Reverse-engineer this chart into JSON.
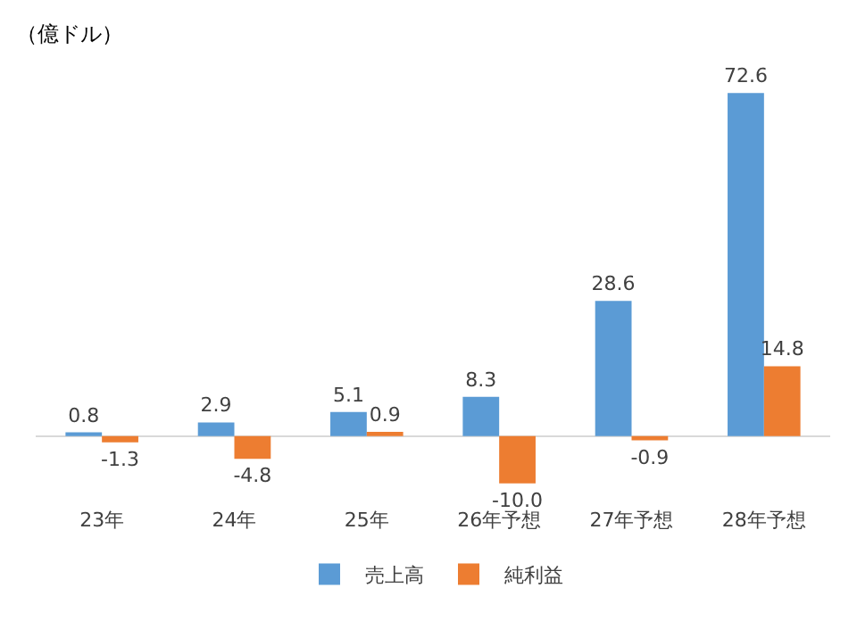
{
  "chart_data": {
    "type": "bar",
    "ylabel": "（億ドル）",
    "categories": [
      "23年",
      "24年",
      "25年",
      "26年予想",
      "27年予想",
      "28年予想"
    ],
    "series": [
      {
        "name": "売上高",
        "color": "#5b9bd5",
        "values": [
          0.8,
          2.9,
          5.1,
          8.3,
          28.6,
          72.6
        ],
        "value_labels": [
          "0.8",
          "2.9",
          "5.1",
          "8.3",
          "28.6",
          "72.6"
        ]
      },
      {
        "name": "純利益",
        "color": "#ed7d31",
        "values": [
          -1.3,
          -4.8,
          0.9,
          -10.0,
          -0.9,
          14.8
        ],
        "value_labels": [
          "-1.3",
          "-4.8",
          "0.9",
          "-10.0",
          "-0.9",
          "14.8"
        ]
      }
    ],
    "legend": "bottom"
  }
}
